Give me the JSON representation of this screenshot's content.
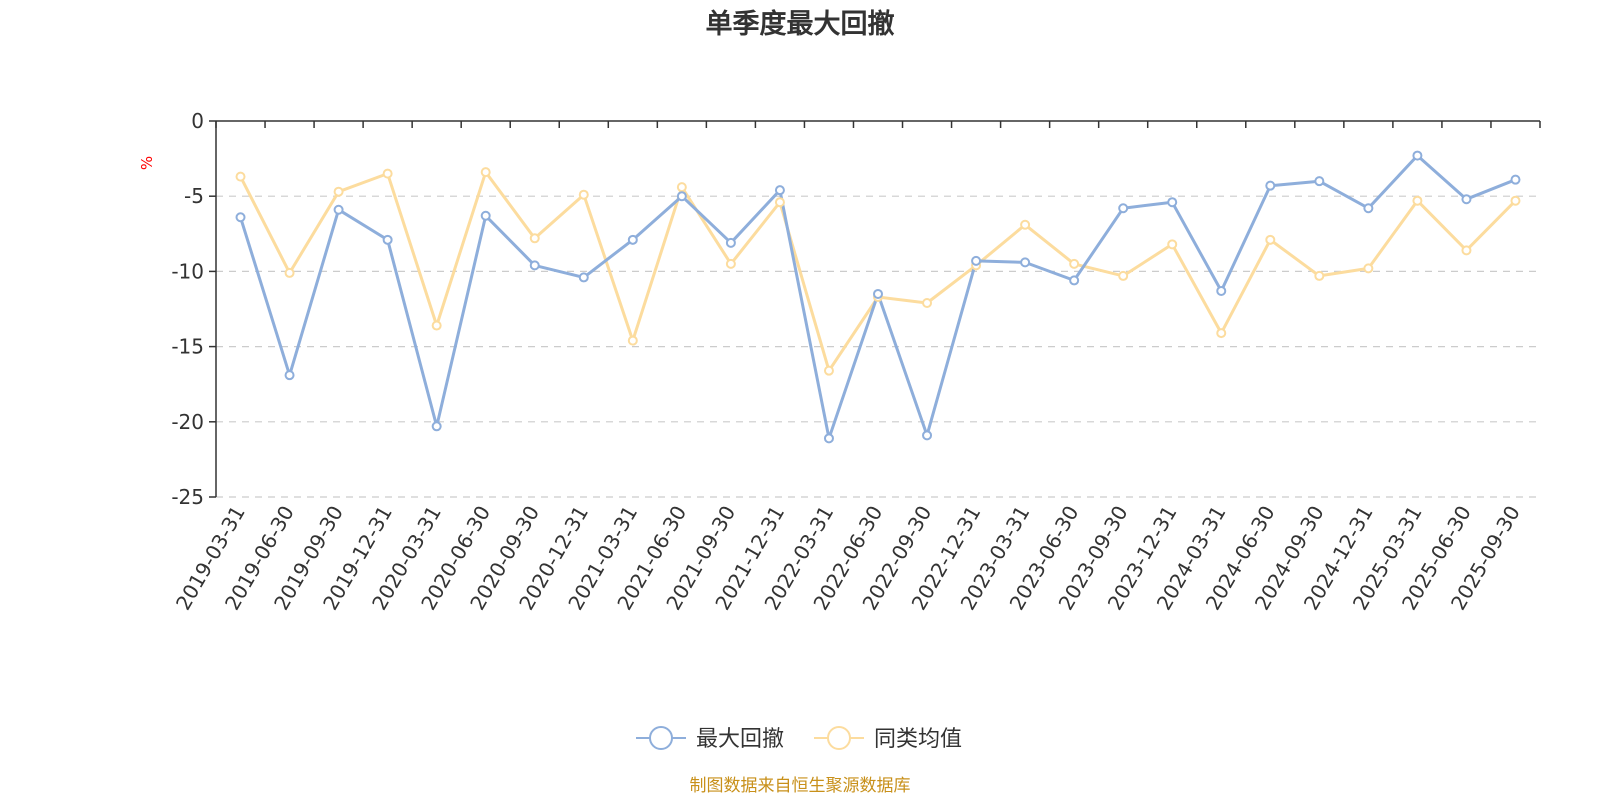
{
  "chart_data": {
    "type": "line",
    "title": "单季度最大回撤",
    "ylabel": "%",
    "ylim": [
      -25,
      0
    ],
    "yticks": [
      0,
      -5,
      -10,
      -15,
      -20,
      -25
    ],
    "grid": true,
    "legend_position": "bottom-center",
    "categories": [
      "2019-03-31",
      "2019-06-30",
      "2019-09-30",
      "2019-12-31",
      "2020-03-31",
      "2020-06-30",
      "2020-09-30",
      "2020-12-31",
      "2021-03-31",
      "2021-06-30",
      "2021-09-30",
      "2021-12-31",
      "2022-03-31",
      "2022-06-30",
      "2022-09-30",
      "2022-12-31",
      "2023-03-31",
      "2023-06-30",
      "2023-09-30",
      "2023-12-31",
      "2024-03-31",
      "2024-06-30",
      "2024-09-30",
      "2024-12-31",
      "2025-03-31",
      "2025-06-30",
      "2025-09-30"
    ],
    "series": [
      {
        "name": "最大回撤",
        "color": "#8eaedb",
        "values": [
          -6.4,
          -16.9,
          -5.9,
          -7.9,
          -20.3,
          -6.3,
          -9.6,
          -10.4,
          -7.9,
          -5.0,
          -8.1,
          -4.6,
          -21.1,
          -11.5,
          -20.9,
          -9.3,
          -9.4,
          -10.6,
          -5.8,
          -5.4,
          -11.3,
          -4.3,
          -4.0,
          -5.8,
          -2.3,
          -5.2,
          -3.9
        ]
      },
      {
        "name": "同类均值",
        "color": "#fcdc9e",
        "values": [
          -3.7,
          -10.1,
          -4.7,
          -3.5,
          -13.6,
          -3.4,
          -7.8,
          -4.9,
          -14.6,
          -4.4,
          -9.5,
          -5.4,
          -16.6,
          -11.7,
          -12.1,
          -9.6,
          -6.9,
          -9.5,
          -10.3,
          -8.2,
          -14.1,
          -7.9,
          -10.3,
          -9.8,
          -5.3,
          -8.6,
          -5.3
        ]
      }
    ]
  },
  "footer": {
    "source": "制图数据来自恒生聚源数据库"
  }
}
